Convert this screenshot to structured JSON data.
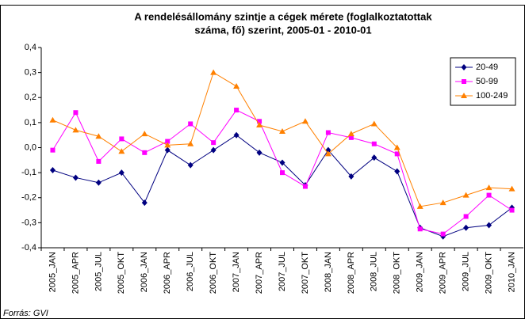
{
  "chart_data": {
    "type": "line",
    "title": [
      "A rendelésállomány szintje a cégek mérete (foglalkoztatottak",
      "száma, fő) szerint, 2005-01 - 2010-01"
    ],
    "categories": [
      "2005_JAN",
      "2005_APR",
      "2005_JUL",
      "2005_OKT",
      "2006_JAN",
      "2006_APR",
      "2006_JUL",
      "2006_OKT",
      "2007_JAN",
      "2007_APR",
      "2007_JUL",
      "2007_OKT",
      "2008_JAN",
      "2008_APR",
      "2008_JUL",
      "2008_OKT",
      "2009_JAN",
      "2009_APR",
      "2009_JUL",
      "2009_OKT",
      "2010_JAN"
    ],
    "series": [
      {
        "name": "20-49",
        "color": "#000080",
        "marker": "diamond",
        "values": [
          -0.09,
          -0.12,
          -0.14,
          -0.1,
          -0.22,
          -0.01,
          -0.07,
          -0.01,
          0.05,
          -0.02,
          -0.06,
          -0.15,
          -0.01,
          -0.115,
          -0.04,
          -0.095,
          -0.32,
          -0.355,
          -0.32,
          -0.31,
          -0.24
        ]
      },
      {
        "name": "50-99",
        "color": "#ff00ff",
        "marker": "square",
        "values": [
          -0.01,
          0.14,
          -0.055,
          0.035,
          -0.02,
          0.025,
          0.095,
          0.02,
          0.15,
          0.105,
          -0.1,
          -0.155,
          0.06,
          0.04,
          0.015,
          -0.025,
          -0.325,
          -0.345,
          -0.275,
          -0.19,
          -0.25
        ]
      },
      {
        "name": "100-249",
        "color": "#ff8000",
        "marker": "triangle",
        "values": [
          0.11,
          0.07,
          0.045,
          -0.015,
          0.055,
          0.01,
          0.015,
          0.3,
          0.245,
          0.09,
          0.065,
          0.105,
          -0.025,
          0.055,
          0.095,
          0.0,
          -0.235,
          -0.22,
          -0.19,
          -0.16,
          -0.165
        ]
      }
    ],
    "ylim": [
      -0.4,
      0.4
    ],
    "yticks": [
      {
        "value": -0.4,
        "label": "-0,4"
      },
      {
        "value": -0.3,
        "label": "-0,3"
      },
      {
        "value": -0.2,
        "label": "-0,2"
      },
      {
        "value": -0.1,
        "label": "-0,1"
      },
      {
        "value": 0,
        "label": "0,0"
      },
      {
        "value": 0.1,
        "label": "0,1"
      },
      {
        "value": 0.2,
        "label": "0,2"
      },
      {
        "value": 0.3,
        "label": "0,3"
      },
      {
        "value": 0.4,
        "label": "0,4"
      }
    ],
    "grid": false,
    "legend": "upper right",
    "source": "Forrás: GVI"
  }
}
